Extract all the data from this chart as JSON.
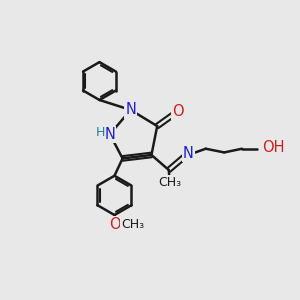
{
  "background_color": "#e8e8e8",
  "bond_color": "#1a1a1a",
  "N_color": "#2020cc",
  "O_color": "#cc2020",
  "C_color": "#1a1a1a",
  "H_color": "#2080a0",
  "figsize": [
    3.0,
    3.0
  ],
  "dpi": 100,
  "xlim": [
    0,
    10
  ],
  "ylim": [
    0,
    10
  ]
}
